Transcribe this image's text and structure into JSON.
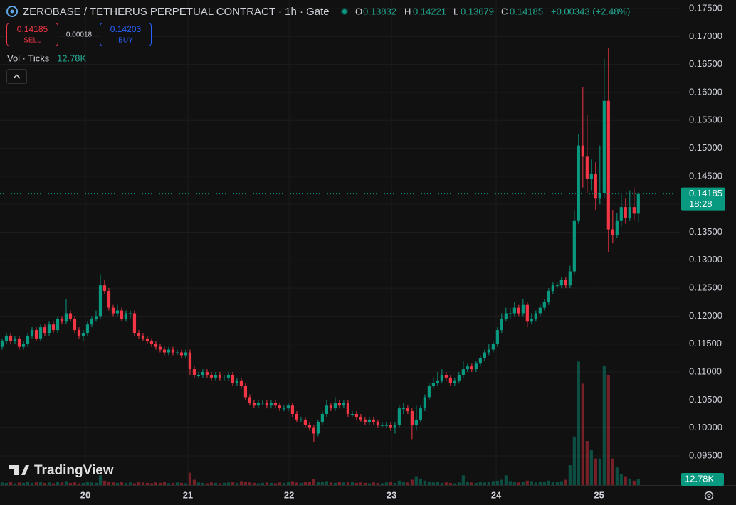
{
  "header": {
    "o_key": "O",
    "h_key": "H",
    "l_key": "L",
    "c_key": "C",
    "change": "+0.00343 (+2.48%)",
    "sell_label": "SELL",
    "buy_label": "BUY",
    "buy_price": 0.14203,
    "spread": 0.00018,
    "countdown": "18:28",
    "brand": "TradingView"
  },
  "chart_data": {
    "type": "candlestick",
    "title": "ZEROBASE / TETHERUS PERPETUAL CONTRACT · 1h · Gate",
    "up_color": "#089981",
    "down_color": "#f23645",
    "open": [
      0.1145,
      0.1155,
      0.1165,
      0.1155,
      0.116,
      0.1145,
      0.115,
      0.1165,
      0.1175,
      0.116,
      0.118,
      0.117,
      0.1185,
      0.1175,
      0.1195,
      0.119,
      0.1205,
      0.1195,
      0.1175,
      0.1165,
      0.117,
      0.1185,
      0.1195,
      0.12,
      0.1255,
      0.1245,
      0.1215,
      0.1205,
      0.121,
      0.1195,
      0.1205,
      0.1205,
      0.117,
      0.1165,
      0.116,
      0.1155,
      0.115,
      0.1145,
      0.114,
      0.1135,
      0.114,
      0.1135,
      0.1135,
      0.113,
      0.1135,
      0.1105,
      0.1095,
      0.1095,
      0.11,
      0.1095,
      0.109,
      0.1095,
      0.109,
      0.109,
      0.1095,
      0.108,
      0.1085,
      0.1075,
      0.1055,
      0.1045,
      0.104,
      0.1045,
      0.1045,
      0.104,
      0.1045,
      0.104,
      0.1035,
      0.1035,
      0.104,
      0.1025,
      0.1015,
      0.1015,
      0.1005,
      0.1,
      0.099,
      0.101,
      0.1025,
      0.104,
      0.1035,
      0.1045,
      0.104,
      0.1045,
      0.1025,
      0.1025,
      0.102,
      0.1015,
      0.101,
      0.1015,
      0.101,
      0.1005,
      0.1005,
      0.1005,
      0.1,
      0.1005,
      0.1035,
      0.1035,
      0.103,
      0.1005,
      0.1015,
      0.1035,
      0.1055,
      0.1075,
      0.108,
      0.1085,
      0.1095,
      0.109,
      0.108,
      0.1085,
      0.1095,
      0.1105,
      0.111,
      0.1105,
      0.1115,
      0.1125,
      0.1135,
      0.114,
      0.115,
      0.1175,
      0.1195,
      0.1205,
      0.1205,
      0.1215,
      0.1205,
      0.122,
      0.119,
      0.1195,
      0.1205,
      0.1215,
      0.1225,
      0.1245,
      0.1255,
      0.1255,
      0.1265,
      0.1255,
      0.128,
      0.137,
      0.1505,
      0.1485,
      0.1445,
      0.1455,
      0.141,
      0.142,
      0.1585,
      0.1355,
      0.1345,
      0.137,
      0.1395,
      0.1375,
      0.1395,
      0.13832
    ],
    "high": [
      0.116,
      0.117,
      0.117,
      0.1165,
      0.1165,
      0.1155,
      0.117,
      0.118,
      0.118,
      0.1185,
      0.1185,
      0.119,
      0.119,
      0.12,
      0.12,
      0.123,
      0.121,
      0.12,
      0.118,
      0.1175,
      0.119,
      0.12,
      0.121,
      0.1275,
      0.1265,
      0.125,
      0.122,
      0.122,
      0.1215,
      0.121,
      0.121,
      0.121,
      0.1175,
      0.117,
      0.1165,
      0.116,
      0.1155,
      0.115,
      0.1145,
      0.1145,
      0.1145,
      0.114,
      0.114,
      0.114,
      0.114,
      0.111,
      0.11,
      0.1105,
      0.1105,
      0.11,
      0.11,
      0.11,
      0.1095,
      0.11,
      0.11,
      0.109,
      0.109,
      0.108,
      0.106,
      0.105,
      0.105,
      0.105,
      0.105,
      0.105,
      0.105,
      0.1045,
      0.104,
      0.1045,
      0.1045,
      0.103,
      0.102,
      0.102,
      0.101,
      0.1005,
      0.1015,
      0.103,
      0.105,
      0.1045,
      0.1055,
      0.105,
      0.105,
      0.105,
      0.103,
      0.103,
      0.1025,
      0.102,
      0.102,
      0.102,
      0.1015,
      0.101,
      0.101,
      0.101,
      0.101,
      0.104,
      0.1045,
      0.104,
      0.1035,
      0.104,
      0.104,
      0.106,
      0.108,
      0.109,
      0.11,
      0.1105,
      0.11,
      0.1095,
      0.109,
      0.11,
      0.112,
      0.1115,
      0.1115,
      0.112,
      0.113,
      0.114,
      0.115,
      0.1155,
      0.118,
      0.1205,
      0.1215,
      0.1215,
      0.1225,
      0.122,
      0.123,
      0.1225,
      0.1205,
      0.121,
      0.122,
      0.123,
      0.125,
      0.126,
      0.126,
      0.127,
      0.127,
      0.129,
      0.139,
      0.1525,
      0.161,
      0.156,
      0.148,
      0.1475,
      0.1505,
      0.166,
      0.168,
      0.139,
      0.1385,
      0.142,
      0.141,
      0.1425,
      0.143,
      0.14221
    ],
    "low": [
      0.114,
      0.115,
      0.115,
      0.115,
      0.114,
      0.114,
      0.1145,
      0.116,
      0.1155,
      0.1155,
      0.1165,
      0.1165,
      0.117,
      0.117,
      0.1185,
      0.1185,
      0.119,
      0.117,
      0.116,
      0.1155,
      0.1165,
      0.118,
      0.119,
      0.1195,
      0.124,
      0.121,
      0.12,
      0.12,
      0.119,
      0.119,
      0.1195,
      0.1165,
      0.116,
      0.1155,
      0.115,
      0.1145,
      0.114,
      0.1135,
      0.113,
      0.113,
      0.113,
      0.113,
      0.1125,
      0.1125,
      0.1095,
      0.109,
      0.109,
      0.109,
      0.109,
      0.1085,
      0.1085,
      0.1085,
      0.1085,
      0.1085,
      0.1075,
      0.1075,
      0.107,
      0.105,
      0.104,
      0.1035,
      0.1035,
      0.104,
      0.1035,
      0.1035,
      0.1035,
      0.103,
      0.103,
      0.103,
      0.102,
      0.101,
      0.101,
      0.1,
      0.0995,
      0.0975,
      0.0985,
      0.1005,
      0.102,
      0.103,
      0.103,
      0.1035,
      0.1035,
      0.102,
      0.102,
      0.1015,
      0.101,
      0.1005,
      0.1005,
      0.1005,
      0.1,
      0.1,
      0.1,
      0.0995,
      0.099,
      0.1,
      0.1025,
      0.1025,
      0.098,
      0.0995,
      0.101,
      0.103,
      0.105,
      0.107,
      0.1075,
      0.108,
      0.1085,
      0.1075,
      0.1075,
      0.108,
      0.109,
      0.11,
      0.11,
      0.11,
      0.111,
      0.112,
      0.113,
      0.1135,
      0.1145,
      0.117,
      0.119,
      0.1195,
      0.12,
      0.12,
      0.12,
      0.118,
      0.1185,
      0.119,
      0.12,
      0.121,
      0.122,
      0.124,
      0.125,
      0.125,
      0.125,
      0.125,
      0.1275,
      0.1365,
      0.143,
      0.142,
      0.1425,
      0.139,
      0.14,
      0.141,
      0.1315,
      0.133,
      0.134,
      0.136,
      0.1365,
      0.137,
      0.137,
      0.13679
    ],
    "close": [
      0.1155,
      0.1165,
      0.1155,
      0.116,
      0.1145,
      0.115,
      0.1165,
      0.1175,
      0.116,
      0.118,
      0.117,
      0.1185,
      0.1175,
      0.1195,
      0.119,
      0.1205,
      0.1195,
      0.1175,
      0.1165,
      0.117,
      0.1185,
      0.1195,
      0.12,
      0.1255,
      0.1245,
      0.1215,
      0.1205,
      0.121,
      0.1195,
      0.1205,
      0.1205,
      0.117,
      0.1165,
      0.116,
      0.1155,
      0.115,
      0.1145,
      0.114,
      0.1135,
      0.114,
      0.1135,
      0.1135,
      0.113,
      0.1135,
      0.1105,
      0.1095,
      0.1095,
      0.11,
      0.1095,
      0.109,
      0.1095,
      0.109,
      0.109,
      0.1095,
      0.108,
      0.1085,
      0.1075,
      0.1055,
      0.1045,
      0.104,
      0.1045,
      0.1045,
      0.104,
      0.1045,
      0.104,
      0.1035,
      0.1035,
      0.104,
      0.1025,
      0.1015,
      0.1015,
      0.1005,
      0.1,
      0.099,
      0.101,
      0.1025,
      0.104,
      0.1035,
      0.1045,
      0.104,
      0.1045,
      0.1025,
      0.1025,
      0.102,
      0.1015,
      0.101,
      0.1015,
      0.101,
      0.1005,
      0.1005,
      0.1005,
      0.1,
      0.1005,
      0.1035,
      0.1035,
      0.103,
      0.1005,
      0.1015,
      0.1035,
      0.1055,
      0.1075,
      0.108,
      0.1085,
      0.1095,
      0.109,
      0.108,
      0.1085,
      0.1095,
      0.1105,
      0.111,
      0.1105,
      0.1115,
      0.1125,
      0.1135,
      0.114,
      0.115,
      0.1175,
      0.1195,
      0.1205,
      0.1205,
      0.1215,
      0.1205,
      0.122,
      0.119,
      0.1195,
      0.1205,
      0.1215,
      0.1225,
      0.1245,
      0.1255,
      0.1255,
      0.1265,
      0.1255,
      0.128,
      0.137,
      0.1505,
      0.1485,
      0.1445,
      0.1455,
      0.141,
      0.142,
      0.1585,
      0.1355,
      0.1345,
      0.137,
      0.1395,
      0.1375,
      0.1395,
      0.13832,
      0.14185
    ],
    "volume": {
      "name": "Vol · Ticks",
      "axis": "y2",
      "last_label": "12.78K",
      "values": [
        6,
        5,
        7,
        4,
        6,
        5,
        8,
        5,
        6,
        7,
        5,
        6,
        4,
        8,
        6,
        9,
        5,
        6,
        4,
        5,
        7,
        6,
        5,
        22,
        10,
        8,
        6,
        5,
        7,
        5,
        6,
        4,
        8,
        6,
        5,
        4,
        6,
        5,
        7,
        4,
        5,
        6,
        5,
        4,
        28,
        12,
        6,
        5,
        4,
        6,
        5,
        4,
        5,
        6,
        7,
        5,
        9,
        8,
        6,
        5,
        4,
        5,
        6,
        5,
        4,
        6,
        5,
        7,
        9,
        6,
        5,
        8,
        7,
        14,
        8,
        7,
        9,
        6,
        5,
        7,
        6,
        8,
        7,
        5,
        6,
        5,
        4,
        6,
        5,
        4,
        6,
        7,
        5,
        10,
        8,
        6,
        12,
        20,
        14,
        10,
        8,
        6,
        7,
        5,
        6,
        5,
        4,
        6,
        22,
        8,
        6,
        5,
        7,
        6,
        8,
        9,
        10,
        12,
        22,
        9,
        7,
        6,
        8,
        10,
        9,
        6,
        7,
        8,
        10,
        7,
        8,
        9,
        12,
        45,
        110,
        280,
        230,
        100,
        80,
        60,
        60,
        270,
        250,
        60,
        40,
        25,
        20,
        15,
        10,
        12.78
      ]
    },
    "ylim": [
      0.08978,
      0.17653
    ],
    "yticks": [
      {
        "value": 0.175,
        "label": "0.17500"
      },
      {
        "value": 0.17,
        "label": "0.17000"
      },
      {
        "value": 0.165,
        "label": "0.16500"
      },
      {
        "value": 0.16,
        "label": "0.16000"
      },
      {
        "value": 0.155,
        "label": "0.15500"
      },
      {
        "value": 0.15,
        "label": "0.15000"
      },
      {
        "value": 0.145,
        "label": "0.14500"
      },
      {
        "value": 0.14,
        "label": "0.14000"
      },
      {
        "value": 0.135,
        "label": "0.13500"
      },
      {
        "value": 0.13,
        "label": "0.13000"
      },
      {
        "value": 0.125,
        "label": "0.12500"
      },
      {
        "value": 0.12,
        "label": "0.12000"
      },
      {
        "value": 0.115,
        "label": "0.11500"
      },
      {
        "value": 0.11,
        "label": "0.11000"
      },
      {
        "value": 0.105,
        "label": "0.10500"
      },
      {
        "value": 0.1,
        "label": "0.10000"
      },
      {
        "value": 0.095,
        "label": "0.09500"
      }
    ],
    "y2lim": [
      0,
      1100
    ],
    "xlim": [
      -0.5,
      158.7
    ],
    "xticks": [
      {
        "value": 19.5,
        "label": "20"
      },
      {
        "value": 43.5,
        "label": "21"
      },
      {
        "value": 67.2,
        "label": "22"
      },
      {
        "value": 91.2,
        "label": "23"
      },
      {
        "value": 115.7,
        "label": "24"
      },
      {
        "value": 139.8,
        "label": "25"
      }
    ],
    "grid": true
  }
}
